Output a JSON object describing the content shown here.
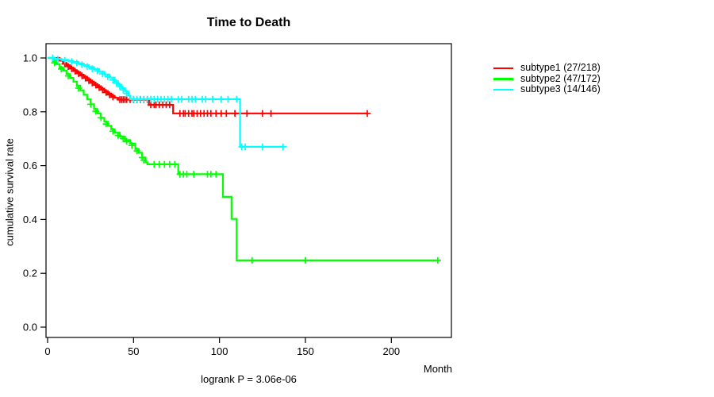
{
  "chart_data": {
    "type": "line",
    "subtype": "kaplan-meier-survival-step",
    "title": "Time to Death",
    "xlabel": "Month",
    "ylabel": "cumulative survival rate",
    "annotation": "logrank P = 3.06e-06",
    "xlim": [
      0,
      235
    ],
    "ylim": [
      0.0,
      1.0
    ],
    "grid": false,
    "x_axis": {
      "tick_values": [
        0,
        50,
        100,
        150,
        200
      ],
      "tick_labels": [
        "0",
        "50",
        "100",
        "150",
        "200"
      ]
    },
    "y_axis": {
      "tick_values": [
        0.0,
        0.2,
        0.4,
        0.6,
        0.8,
        1.0
      ],
      "tick_labels": [
        "0.0",
        "0.2",
        "0.4",
        "0.6",
        "0.8",
        "1.0"
      ]
    },
    "legend": {
      "position": "right-outside",
      "items": [
        {
          "label": "subtype1 (27/218)",
          "color": "#ff0000"
        },
        {
          "label": "subtype2 (47/172)",
          "color": "#00ff00"
        },
        {
          "label": "subtype3 (14/146)",
          "color": "#00ffff"
        }
      ]
    },
    "series": [
      {
        "name": "subtype1",
        "events_over_n": "27/218",
        "color": "#ff0000",
        "end_time": 186,
        "steps": [
          [
            7,
            0.99
          ],
          [
            9,
            0.981
          ],
          [
            11,
            0.973
          ],
          [
            13,
            0.964
          ],
          [
            15,
            0.955
          ],
          [
            17,
            0.947
          ],
          [
            19,
            0.938
          ],
          [
            21,
            0.93
          ],
          [
            23,
            0.921
          ],
          [
            25,
            0.912
          ],
          [
            27,
            0.903
          ],
          [
            29,
            0.895
          ],
          [
            31,
            0.886
          ],
          [
            33,
            0.877
          ],
          [
            35,
            0.868
          ],
          [
            37,
            0.859
          ],
          [
            39,
            0.852
          ],
          [
            41,
            0.845
          ],
          [
            59,
            0.826
          ],
          [
            73,
            0.794
          ]
        ],
        "censors": [
          [
            10,
            0.978
          ],
          [
            12,
            0.968
          ],
          [
            14,
            0.96
          ],
          [
            16,
            0.951
          ],
          [
            18,
            0.942
          ],
          [
            20,
            0.934
          ],
          [
            22,
            0.925
          ],
          [
            24,
            0.916
          ],
          [
            26,
            0.907
          ],
          [
            28,
            0.899
          ],
          [
            30,
            0.89
          ],
          [
            32,
            0.881
          ],
          [
            34,
            0.872
          ],
          [
            36,
            0.863
          ],
          [
            38,
            0.855
          ],
          [
            42,
            0.845
          ],
          [
            43,
            0.845
          ],
          [
            44,
            0.845
          ],
          [
            45,
            0.845
          ],
          [
            46,
            0.845
          ],
          [
            48,
            0.845
          ],
          [
            50,
            0.845
          ],
          [
            52,
            0.845
          ],
          [
            54,
            0.845
          ],
          [
            56,
            0.845
          ],
          [
            58,
            0.845
          ],
          [
            60,
            0.826
          ],
          [
            62,
            0.826
          ],
          [
            63,
            0.826
          ],
          [
            65,
            0.826
          ],
          [
            67,
            0.826
          ],
          [
            69,
            0.826
          ],
          [
            71,
            0.826
          ],
          [
            77,
            0.794
          ],
          [
            79,
            0.794
          ],
          [
            80,
            0.794
          ],
          [
            82,
            0.794
          ],
          [
            84,
            0.794
          ],
          [
            85,
            0.794
          ],
          [
            87,
            0.794
          ],
          [
            89,
            0.794
          ],
          [
            91,
            0.794
          ],
          [
            93,
            0.794
          ],
          [
            95,
            0.794
          ],
          [
            98,
            0.794
          ],
          [
            101,
            0.794
          ],
          [
            104,
            0.794
          ],
          [
            109,
            0.794
          ],
          [
            116,
            0.794
          ],
          [
            125,
            0.794
          ],
          [
            130,
            0.794
          ],
          [
            186,
            0.794
          ]
        ]
      },
      {
        "name": "subtype2",
        "events_over_n": "47/172",
        "color": "#00ff00",
        "end_time": 227,
        "steps": [
          [
            3,
            0.988
          ],
          [
            5,
            0.977
          ],
          [
            7,
            0.965
          ],
          [
            9,
            0.953
          ],
          [
            11,
            0.94
          ],
          [
            13,
            0.926
          ],
          [
            15,
            0.912
          ],
          [
            17,
            0.897
          ],
          [
            19,
            0.88
          ],
          [
            21,
            0.863
          ],
          [
            23,
            0.846
          ],
          [
            25,
            0.828
          ],
          [
            27,
            0.81
          ],
          [
            29,
            0.794
          ],
          [
            31,
            0.778
          ],
          [
            33,
            0.763
          ],
          [
            35,
            0.748
          ],
          [
            37,
            0.735
          ],
          [
            39,
            0.722
          ],
          [
            42,
            0.708
          ],
          [
            45,
            0.695
          ],
          [
            48,
            0.682
          ],
          [
            51,
            0.662
          ],
          [
            53,
            0.648
          ],
          [
            55,
            0.63
          ],
          [
            57,
            0.612
          ],
          [
            58,
            0.605
          ],
          [
            76,
            0.568
          ],
          [
            102,
            0.484
          ],
          [
            107,
            0.402
          ],
          [
            110,
            0.248
          ]
        ],
        "censors": [
          [
            4,
            0.982
          ],
          [
            8,
            0.959
          ],
          [
            12,
            0.933
          ],
          [
            18,
            0.888
          ],
          [
            25,
            0.828
          ],
          [
            28,
            0.802
          ],
          [
            31,
            0.778
          ],
          [
            34,
            0.755
          ],
          [
            38,
            0.728
          ],
          [
            41,
            0.712
          ],
          [
            44,
            0.7
          ],
          [
            46,
            0.69
          ],
          [
            49,
            0.675
          ],
          [
            52,
            0.655
          ],
          [
            55,
            0.63
          ],
          [
            56,
            0.62
          ],
          [
            62,
            0.605
          ],
          [
            65,
            0.605
          ],
          [
            68,
            0.605
          ],
          [
            71,
            0.605
          ],
          [
            74,
            0.605
          ],
          [
            77,
            0.568
          ],
          [
            79,
            0.568
          ],
          [
            81,
            0.568
          ],
          [
            85,
            0.568
          ],
          [
            93,
            0.568
          ],
          [
            95,
            0.568
          ],
          [
            98,
            0.568
          ],
          [
            119,
            0.248
          ],
          [
            150,
            0.248
          ],
          [
            227,
            0.248
          ]
        ]
      },
      {
        "name": "subtype3",
        "events_over_n": "14/146",
        "color": "#00ffff",
        "end_time": 137,
        "steps": [
          [
            4,
            0.997
          ],
          [
            8,
            0.993
          ],
          [
            12,
            0.989
          ],
          [
            15,
            0.985
          ],
          [
            18,
            0.979
          ],
          [
            21,
            0.973
          ],
          [
            24,
            0.966
          ],
          [
            27,
            0.958
          ],
          [
            30,
            0.949
          ],
          [
            33,
            0.938
          ],
          [
            36,
            0.927
          ],
          [
            39,
            0.914
          ],
          [
            41,
            0.901
          ],
          [
            43,
            0.888
          ],
          [
            45,
            0.875
          ],
          [
            47,
            0.86
          ],
          [
            48,
            0.847
          ],
          [
            112,
            0.67
          ]
        ],
        "censors": [
          [
            3,
            1.0
          ],
          [
            6,
            0.995
          ],
          [
            10,
            0.991
          ],
          [
            14,
            0.986
          ],
          [
            17,
            0.981
          ],
          [
            20,
            0.975
          ],
          [
            23,
            0.968
          ],
          [
            26,
            0.96
          ],
          [
            29,
            0.952
          ],
          [
            32,
            0.941
          ],
          [
            35,
            0.93
          ],
          [
            38,
            0.918
          ],
          [
            40,
            0.907
          ],
          [
            42,
            0.894
          ],
          [
            44,
            0.881
          ],
          [
            46,
            0.868
          ],
          [
            50,
            0.847
          ],
          [
            52,
            0.847
          ],
          [
            54,
            0.847
          ],
          [
            56,
            0.847
          ],
          [
            58,
            0.847
          ],
          [
            60,
            0.847
          ],
          [
            62,
            0.847
          ],
          [
            64,
            0.847
          ],
          [
            66,
            0.847
          ],
          [
            68,
            0.847
          ],
          [
            70,
            0.847
          ],
          [
            72,
            0.847
          ],
          [
            76,
            0.847
          ],
          [
            78,
            0.847
          ],
          [
            82,
            0.847
          ],
          [
            84,
            0.847
          ],
          [
            86,
            0.847
          ],
          [
            90,
            0.847
          ],
          [
            92,
            0.847
          ],
          [
            96,
            0.847
          ],
          [
            101,
            0.847
          ],
          [
            105,
            0.847
          ],
          [
            110,
            0.847
          ],
          [
            113,
            0.67
          ],
          [
            115,
            0.67
          ],
          [
            125,
            0.67
          ],
          [
            137,
            0.67
          ]
        ]
      }
    ]
  }
}
